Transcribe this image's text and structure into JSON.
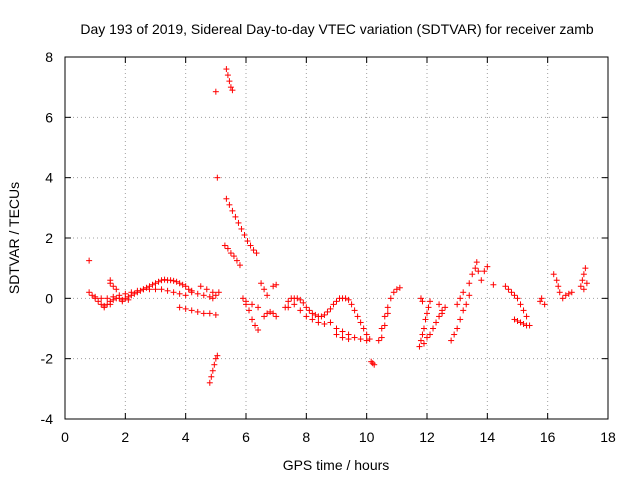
{
  "chart_data": {
    "type": "scatter",
    "title": "Day 193 of 2019, Sidereal Day-to-day VTEC variation (SDTVAR) for receiver zamb",
    "xlabel": "GPS time / hours",
    "ylabel": "SDTVAR / TECUs",
    "xlim": [
      0,
      18
    ],
    "ylim": [
      -4,
      8
    ],
    "xticks": [
      0,
      2,
      4,
      6,
      8,
      10,
      12,
      14,
      16,
      18
    ],
    "yticks": [
      -4,
      -2,
      0,
      2,
      4,
      6,
      8
    ],
    "xtick_labels": [
      "0",
      "2",
      "4",
      "6",
      "8",
      "10",
      "12",
      "14",
      "16",
      "18"
    ],
    "ytick_labels": [
      "-4",
      "-2",
      "0",
      "2",
      "4",
      "6",
      "8"
    ],
    "grid": true,
    "marker": "+",
    "color": "#ff0000",
    "series": [
      {
        "name": "SDTVAR",
        "points": [
          [
            0.8,
            1.25
          ],
          [
            0.8,
            0.2
          ],
          [
            0.9,
            0.1
          ],
          [
            1.0,
            0.0
          ],
          [
            1.1,
            -0.1
          ],
          [
            1.2,
            -0.2
          ],
          [
            1.3,
            -0.3
          ],
          [
            1.4,
            -0.2
          ],
          [
            1.5,
            -0.1
          ],
          [
            1.6,
            -0.05
          ],
          [
            1.7,
            0.0
          ],
          [
            1.8,
            0.0
          ],
          [
            1.9,
            -0.05
          ],
          [
            2.0,
            0.0
          ],
          [
            2.1,
            0.05
          ],
          [
            2.2,
            0.1
          ],
          [
            2.3,
            0.15
          ],
          [
            2.4,
            0.2
          ],
          [
            2.5,
            0.25
          ],
          [
            2.6,
            0.3
          ],
          [
            2.7,
            0.35
          ],
          [
            2.8,
            0.4
          ],
          [
            2.9,
            0.45
          ],
          [
            3.0,
            0.5
          ],
          [
            3.1,
            0.55
          ],
          [
            3.2,
            0.6
          ],
          [
            3.3,
            0.62
          ],
          [
            3.4,
            0.6
          ],
          [
            3.5,
            0.6
          ],
          [
            3.6,
            0.58
          ],
          [
            3.7,
            0.55
          ],
          [
            3.8,
            0.5
          ],
          [
            3.9,
            0.45
          ],
          [
            4.0,
            0.4
          ],
          [
            4.1,
            0.3
          ],
          [
            4.2,
            0.25
          ],
          [
            1.0,
            0.05
          ],
          [
            1.2,
            0.0
          ],
          [
            1.4,
            0.0
          ],
          [
            1.6,
            0.05
          ],
          [
            1.8,
            0.1
          ],
          [
            2.0,
            0.15
          ],
          [
            2.2,
            0.2
          ],
          [
            2.4,
            0.25
          ],
          [
            2.6,
            0.3
          ],
          [
            2.8,
            0.3
          ],
          [
            3.0,
            0.3
          ],
          [
            3.2,
            0.3
          ],
          [
            3.4,
            0.25
          ],
          [
            3.6,
            0.2
          ],
          [
            3.8,
            0.15
          ],
          [
            4.0,
            0.1
          ],
          [
            1.3,
            -0.25
          ],
          [
            1.5,
            -0.2
          ],
          [
            1.9,
            -0.1
          ],
          [
            2.1,
            -0.05
          ],
          [
            1.5,
            0.5
          ],
          [
            1.5,
            0.6
          ],
          [
            1.6,
            0.4
          ],
          [
            1.7,
            0.3
          ],
          [
            3.8,
            -0.3
          ],
          [
            4.0,
            -0.35
          ],
          [
            4.2,
            -0.4
          ],
          [
            4.4,
            -0.45
          ],
          [
            4.6,
            -0.5
          ],
          [
            4.8,
            -0.5
          ],
          [
            5.0,
            -0.55
          ],
          [
            4.2,
            0.2
          ],
          [
            4.4,
            0.15
          ],
          [
            4.6,
            0.1
          ],
          [
            4.8,
            0.05
          ],
          [
            4.9,
            0.0
          ],
          [
            5.0,
            0.1
          ],
          [
            5.1,
            0.2
          ],
          [
            4.5,
            0.4
          ],
          [
            4.7,
            0.3
          ],
          [
            4.9,
            0.2
          ],
          [
            5.0,
            6.85
          ],
          [
            5.05,
            4.0
          ],
          [
            4.8,
            -2.8
          ],
          [
            4.85,
            -2.6
          ],
          [
            4.9,
            -2.4
          ],
          [
            4.95,
            -2.2
          ],
          [
            5.0,
            -2.0
          ],
          [
            5.05,
            -1.9
          ],
          [
            5.35,
            7.6
          ],
          [
            5.4,
            7.4
          ],
          [
            5.45,
            7.2
          ],
          [
            5.5,
            7.0
          ],
          [
            5.55,
            6.9
          ],
          [
            5.35,
            3.3
          ],
          [
            5.45,
            3.1
          ],
          [
            5.55,
            2.9
          ],
          [
            5.65,
            2.7
          ],
          [
            5.75,
            2.5
          ],
          [
            5.85,
            2.3
          ],
          [
            5.95,
            2.1
          ],
          [
            6.05,
            1.9
          ],
          [
            6.15,
            1.75
          ],
          [
            6.25,
            1.6
          ],
          [
            6.35,
            1.5
          ],
          [
            5.3,
            1.75
          ],
          [
            5.4,
            1.65
          ],
          [
            5.5,
            1.5
          ],
          [
            5.6,
            1.4
          ],
          [
            5.7,
            1.25
          ],
          [
            5.8,
            1.1
          ],
          [
            5.9,
            0.0
          ],
          [
            6.0,
            -0.2
          ],
          [
            6.1,
            -0.4
          ],
          [
            6.2,
            -0.7
          ],
          [
            6.3,
            -0.9
          ],
          [
            6.4,
            -1.05
          ],
          [
            6.0,
            -0.1
          ],
          [
            6.2,
            -0.2
          ],
          [
            6.4,
            -0.3
          ],
          [
            6.5,
            0.5
          ],
          [
            6.6,
            0.3
          ],
          [
            6.7,
            0.1
          ],
          [
            6.6,
            -0.6
          ],
          [
            6.7,
            -0.5
          ],
          [
            6.8,
            -0.45
          ],
          [
            6.9,
            -0.5
          ],
          [
            7.0,
            -0.6
          ],
          [
            6.9,
            0.4
          ],
          [
            7.0,
            0.45
          ],
          [
            7.3,
            -0.3
          ],
          [
            7.4,
            -0.1
          ],
          [
            7.5,
            0.0
          ],
          [
            7.6,
            0.0
          ],
          [
            7.7,
            0.0
          ],
          [
            7.8,
            -0.05
          ],
          [
            7.9,
            -0.15
          ],
          [
            8.0,
            -0.3
          ],
          [
            8.1,
            -0.4
          ],
          [
            8.2,
            -0.5
          ],
          [
            8.3,
            -0.55
          ],
          [
            8.4,
            -0.6
          ],
          [
            8.5,
            -0.6
          ],
          [
            8.6,
            -0.55
          ],
          [
            8.7,
            -0.45
          ],
          [
            8.8,
            -0.35
          ],
          [
            8.9,
            -0.2
          ],
          [
            9.0,
            -0.1
          ],
          [
            9.1,
            0.0
          ],
          [
            9.2,
            0.0
          ],
          [
            9.3,
            0.0
          ],
          [
            9.4,
            -0.05
          ],
          [
            9.5,
            -0.2
          ],
          [
            7.4,
            -0.3
          ],
          [
            7.6,
            -0.2
          ],
          [
            7.8,
            -0.4
          ],
          [
            8.0,
            -0.6
          ],
          [
            8.2,
            -0.7
          ],
          [
            8.4,
            -0.8
          ],
          [
            8.6,
            -0.85
          ],
          [
            8.8,
            -0.8
          ],
          [
            9.0,
            -1.0
          ],
          [
            9.2,
            -1.1
          ],
          [
            9.4,
            -1.2
          ],
          [
            9.6,
            -1.3
          ],
          [
            9.8,
            -1.35
          ],
          [
            10.0,
            -1.4
          ],
          [
            9.0,
            -1.2
          ],
          [
            9.2,
            -1.3
          ],
          [
            9.4,
            -1.35
          ],
          [
            9.6,
            -0.4
          ],
          [
            9.7,
            -0.6
          ],
          [
            9.8,
            -0.8
          ],
          [
            9.9,
            -1.0
          ],
          [
            10.0,
            -1.2
          ],
          [
            10.1,
            -1.35
          ],
          [
            10.2,
            -2.15
          ],
          [
            10.25,
            -2.2
          ],
          [
            10.15,
            -2.1
          ],
          [
            10.4,
            -1.4
          ],
          [
            10.5,
            -1.0
          ],
          [
            10.6,
            -0.6
          ],
          [
            10.7,
            -0.3
          ],
          [
            10.8,
            0.0
          ],
          [
            10.9,
            0.2
          ],
          [
            11.0,
            0.3
          ],
          [
            11.1,
            0.35
          ],
          [
            10.5,
            -1.3
          ],
          [
            10.6,
            -0.9
          ],
          [
            10.7,
            -0.5
          ],
          [
            11.75,
            -1.6
          ],
          [
            11.8,
            -1.4
          ],
          [
            11.85,
            -1.2
          ],
          [
            11.9,
            -1.0
          ],
          [
            11.95,
            -0.7
          ],
          [
            12.0,
            -0.5
          ],
          [
            12.05,
            -0.3
          ],
          [
            12.1,
            -0.1
          ],
          [
            11.8,
            0.0
          ],
          [
            11.85,
            -0.1
          ],
          [
            11.9,
            -1.5
          ],
          [
            12.0,
            -1.3
          ],
          [
            12.1,
            -1.2
          ],
          [
            12.2,
            -1.0
          ],
          [
            12.3,
            -0.8
          ],
          [
            12.4,
            -0.6
          ],
          [
            12.5,
            -0.5
          ],
          [
            12.4,
            -0.2
          ],
          [
            12.5,
            -0.4
          ],
          [
            12.6,
            -0.3
          ],
          [
            12.8,
            -1.4
          ],
          [
            12.9,
            -1.2
          ],
          [
            13.0,
            -1.0
          ],
          [
            13.1,
            -0.7
          ],
          [
            13.2,
            -0.4
          ],
          [
            13.3,
            -0.2
          ],
          [
            13.4,
            0.1
          ],
          [
            13.0,
            -0.2
          ],
          [
            13.1,
            0.0
          ],
          [
            13.2,
            0.2
          ],
          [
            13.4,
            0.5
          ],
          [
            13.5,
            0.8
          ],
          [
            13.6,
            1.0
          ],
          [
            13.65,
            1.2
          ],
          [
            13.7,
            0.9
          ],
          [
            13.8,
            0.6
          ],
          [
            13.9,
            0.9
          ],
          [
            14.0,
            1.05
          ],
          [
            14.2,
            0.45
          ],
          [
            14.6,
            0.4
          ],
          [
            14.7,
            0.3
          ],
          [
            14.8,
            0.2
          ],
          [
            14.9,
            0.1
          ],
          [
            15.0,
            0.0
          ],
          [
            15.1,
            -0.2
          ],
          [
            15.2,
            -0.4
          ],
          [
            15.3,
            -0.6
          ],
          [
            15.4,
            -0.9
          ],
          [
            14.9,
            -0.7
          ],
          [
            15.0,
            -0.75
          ],
          [
            15.1,
            -0.8
          ],
          [
            15.2,
            -0.85
          ],
          [
            15.3,
            -0.9
          ],
          [
            15.9,
            -0.2
          ],
          [
            15.8,
            0.0
          ],
          [
            15.75,
            -0.1
          ],
          [
            16.2,
            0.8
          ],
          [
            16.3,
            0.6
          ],
          [
            16.35,
            0.4
          ],
          [
            16.4,
            0.2
          ],
          [
            16.5,
            0.0
          ],
          [
            16.6,
            0.1
          ],
          [
            16.7,
            0.15
          ],
          [
            16.8,
            0.2
          ],
          [
            17.1,
            0.4
          ],
          [
            17.15,
            0.6
          ],
          [
            17.2,
            0.8
          ],
          [
            17.25,
            1.0
          ],
          [
            17.2,
            0.3
          ],
          [
            17.3,
            0.5
          ]
        ]
      }
    ]
  }
}
